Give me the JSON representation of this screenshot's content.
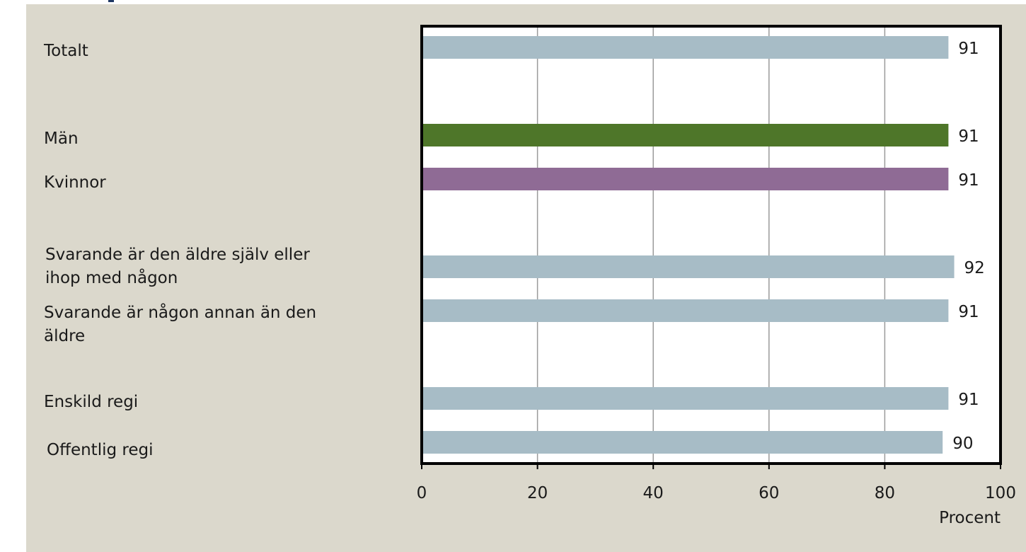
{
  "chart_data": {
    "type": "bar",
    "orientation": "horizontal",
    "categories": [
      {
        "label_lines": [
          "Totalt"
        ],
        "value": 91,
        "color": "#a7bcc6"
      },
      {
        "label_lines": [
          "Män"
        ],
        "value": 91,
        "color": "#4e7629"
      },
      {
        "label_lines": [
          "Kvinnor"
        ],
        "value": 91,
        "color": "#8f6b95"
      },
      {
        "label_lines": [
          "Svarande är den äldre själv eller",
          "ihop med någon"
        ],
        "value": 92,
        "color": "#a7bcc6"
      },
      {
        "label_lines": [
          "Svarande är någon annan än den",
          "äldre"
        ],
        "value": 91,
        "color": "#a7bcc6"
      },
      {
        "label_lines": [
          "Enskild regi"
        ],
        "value": 91,
        "color": "#a7bcc6"
      },
      {
        "label_lines": [
          "Offentlig regi"
        ],
        "value": 90,
        "color": "#a7bcc6"
      }
    ],
    "x_ticks": [
      "0",
      "20",
      "40",
      "60",
      "80",
      "100"
    ],
    "xlim": [
      0,
      100
    ],
    "xlabel": "Procent",
    "grid": true,
    "data_labels": true,
    "legend": false
  }
}
